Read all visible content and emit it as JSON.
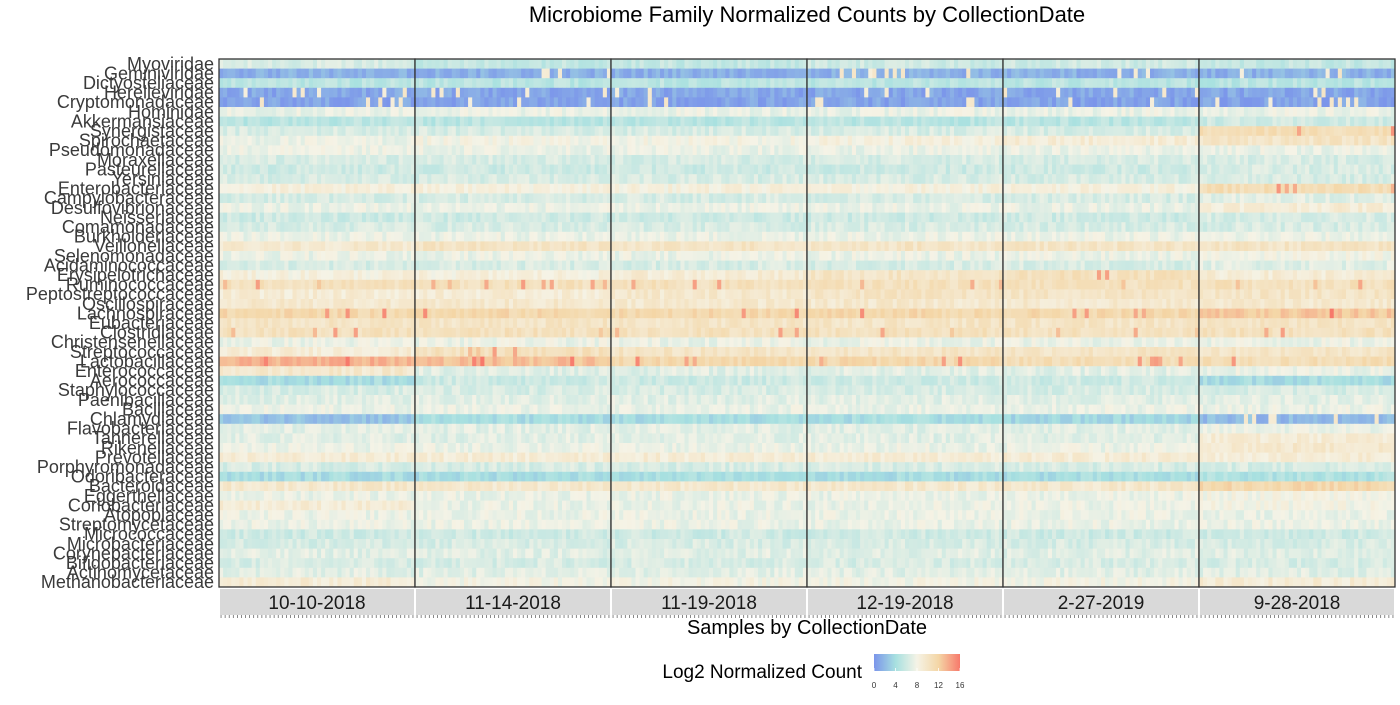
{
  "chart_data": {
    "type": "heatmap",
    "title": "Microbiome Family Normalized Counts by CollectionDate",
    "xlabel": "Samples by CollectionDate",
    "legend": {
      "title": "Log2 Normalized Count",
      "ticks": [
        0,
        4,
        8,
        12,
        16
      ],
      "range": [
        0,
        16
      ],
      "colors": [
        "#7b95ea",
        "#a7e0e0",
        "#f5f3e6",
        "#f4d6a6",
        "#f7796b"
      ],
      "placement": "bottom"
    },
    "panels": [
      {
        "label": "10-10-2018",
        "samples": 48
      },
      {
        "label": "11-14-2018",
        "samples": 48
      },
      {
        "label": "11-19-2018",
        "samples": 48
      },
      {
        "label": "12-19-2018",
        "samples": 48
      },
      {
        "label": "2-27-2019",
        "samples": 48
      },
      {
        "label": "9-28-2018",
        "samples": 48
      }
    ],
    "families": [
      {
        "name": "Myoviridae",
        "base": [
          6.5,
          5.5,
          5.5,
          6,
          6,
          5.5
        ]
      },
      {
        "name": "Geminiviridae",
        "base": [
          1.5,
          1.5,
          1.5,
          1.5,
          1.5,
          1.5
        ]
      },
      {
        "name": "Dictyosteliaceae",
        "base": [
          5,
          5,
          5,
          5,
          5,
          5
        ]
      },
      {
        "name": "Herelleviridae",
        "base": [
          1,
          1,
          1,
          1,
          1,
          1
        ]
      },
      {
        "name": "Cryptomonadaceae",
        "base": [
          0.8,
          0.8,
          0.8,
          0.8,
          0.8,
          0.8
        ]
      },
      {
        "name": "Hominidae",
        "base": [
          7.5,
          7.5,
          7.5,
          7.5,
          7.5,
          7.5
        ]
      },
      {
        "name": "Akkermansiaceae",
        "base": [
          5,
          5,
          5,
          5,
          5,
          6
        ]
      },
      {
        "name": "Synergistaceae",
        "base": [
          6.5,
          6.5,
          6.5,
          6.5,
          6.5,
          11
        ]
      },
      {
        "name": "Spirochaetaceae",
        "base": [
          7.5,
          8,
          8,
          8.5,
          9,
          10
        ]
      },
      {
        "name": "Pseudomonadaceae",
        "base": [
          7.5,
          7.5,
          7.5,
          7.5,
          7.5,
          7.5
        ]
      },
      {
        "name": "Moraxellaceae",
        "base": [
          6.5,
          6.5,
          6.5,
          6.5,
          6.5,
          6.5
        ]
      },
      {
        "name": "Pasteurellaceae",
        "base": [
          6,
          6,
          6,
          6,
          6,
          6.5
        ]
      },
      {
        "name": "Yersiniaceae",
        "base": [
          6.5,
          6.5,
          6.5,
          6.5,
          6.5,
          6.5
        ]
      },
      {
        "name": "Enterobacteriaceae",
        "base": [
          8.5,
          8.5,
          8.5,
          8.5,
          8.5,
          11
        ]
      },
      {
        "name": "Campylobacteraceae",
        "base": [
          6.5,
          6.5,
          6.5,
          6.5,
          6.5,
          7
        ]
      },
      {
        "name": "Desulfovibrionaceae",
        "base": [
          7.5,
          7.5,
          7.5,
          7.5,
          7.5,
          9
        ]
      },
      {
        "name": "Neisseriaceae",
        "base": [
          6,
          6,
          6,
          6,
          6,
          6.5
        ]
      },
      {
        "name": "Comamonadaceae",
        "base": [
          6.5,
          6.5,
          6.5,
          6.5,
          6.5,
          6.5
        ]
      },
      {
        "name": "Burkholderiaceae",
        "base": [
          7.5,
          7.5,
          7.5,
          7.5,
          7.5,
          7.5
        ]
      },
      {
        "name": "Veillonellaceae",
        "base": [
          9.5,
          10,
          10,
          10,
          10,
          10
        ]
      },
      {
        "name": "Selenomonadaceae",
        "base": [
          7.5,
          7.5,
          7.5,
          7.5,
          7.5,
          8
        ]
      },
      {
        "name": "Acidaminococcaceae",
        "base": [
          6.5,
          6.5,
          6.5,
          6.5,
          6.5,
          7
        ]
      },
      {
        "name": "Erysipelotrichaceae",
        "base": [
          8.5,
          8.5,
          9,
          10,
          10.5,
          9
        ]
      },
      {
        "name": "Ruminococcaceae",
        "base": [
          10.5,
          10.5,
          10.5,
          10.5,
          10.5,
          10.5
        ]
      },
      {
        "name": "Peptostreptococcaceae",
        "base": [
          9,
          9,
          9.5,
          10,
          10,
          10
        ]
      },
      {
        "name": "Oscillospiraceae",
        "base": [
          9.5,
          9.5,
          9.5,
          9.5,
          9.5,
          9.5
        ]
      },
      {
        "name": "Lachnospiraceae",
        "base": [
          11.5,
          11.5,
          11.5,
          11.5,
          11.5,
          12.5
        ]
      },
      {
        "name": "Eubacteriaceae",
        "base": [
          10,
          10,
          10,
          10,
          10,
          10
        ]
      },
      {
        "name": "Clostridiaceae",
        "base": [
          10.5,
          10.5,
          10.5,
          10.5,
          10.5,
          10.5
        ]
      },
      {
        "name": "Christensenellaceae",
        "base": [
          7.5,
          7.5,
          7.5,
          7.5,
          7.5,
          7.5
        ]
      },
      {
        "name": "Streptococcaceae",
        "base": [
          9,
          10.5,
          10,
          10,
          10,
          10
        ]
      },
      {
        "name": "Lactobacillaceae",
        "base": [
          13.5,
          13,
          11.5,
          11.5,
          11,
          11
        ]
      },
      {
        "name": "Enterococcaceae",
        "base": [
          9.5,
          7,
          7,
          7,
          7,
          7.5
        ]
      },
      {
        "name": "Aerococcaceae",
        "base": [
          4,
          6,
          6,
          6,
          6,
          4
        ]
      },
      {
        "name": "Staphylococcaceae",
        "base": [
          6.5,
          6.5,
          6.5,
          6.5,
          6.5,
          6.5
        ]
      },
      {
        "name": "Paenibacillaceae",
        "base": [
          7,
          7,
          7,
          7,
          7,
          7
        ]
      },
      {
        "name": "Bacillaceae",
        "base": [
          7.5,
          7.5,
          7.5,
          7.5,
          7.5,
          7.5
        ]
      },
      {
        "name": "Chlamydiaceae",
        "base": [
          2.5,
          4,
          4,
          4,
          3.5,
          2
        ]
      },
      {
        "name": "Flavobacteriaceae",
        "base": [
          7,
          7,
          7,
          7,
          7,
          7.5
        ]
      },
      {
        "name": "Tannerellaceae",
        "base": [
          7,
          7,
          7,
          7,
          7,
          9
        ]
      },
      {
        "name": "Rikenellaceae",
        "base": [
          7.5,
          7.5,
          7.5,
          7.5,
          7.5,
          9.5
        ]
      },
      {
        "name": "Prevotellaceae",
        "base": [
          9,
          9,
          9,
          9,
          9,
          9
        ]
      },
      {
        "name": "Porphyromonadaceae",
        "base": [
          6.5,
          6.5,
          6.5,
          6.5,
          6.5,
          6.5
        ]
      },
      {
        "name": "Odoribacteraceae",
        "base": [
          4,
          4,
          4,
          4,
          4,
          4.5
        ]
      },
      {
        "name": "Bacteroidaceae",
        "base": [
          9.5,
          9.5,
          9.5,
          9.5,
          9.5,
          11.5
        ]
      },
      {
        "name": "Eggerthellaceae",
        "base": [
          7.5,
          7.5,
          7.5,
          7.5,
          7.5,
          8
        ]
      },
      {
        "name": "Coriobacteriaceae",
        "base": [
          9,
          7.5,
          7.5,
          7.5,
          7.5,
          8
        ]
      },
      {
        "name": "Atopobiaceae",
        "base": [
          7.5,
          7.5,
          7.5,
          7.5,
          7.5,
          7.5
        ]
      },
      {
        "name": "Streptomycetaceae",
        "base": [
          7.5,
          7.5,
          7.5,
          7.5,
          7.5,
          7.5
        ]
      },
      {
        "name": "Micrococcaceae",
        "base": [
          6,
          6,
          6,
          6,
          6,
          6
        ]
      },
      {
        "name": "Microbacteriaceae",
        "base": [
          6.5,
          6.5,
          6.5,
          6.5,
          6.5,
          6.5
        ]
      },
      {
        "name": "Corynebacteriaceae",
        "base": [
          7,
          7,
          7,
          7,
          7,
          7
        ]
      },
      {
        "name": "Bifidobacteriaceae",
        "base": [
          6.5,
          6.5,
          6.5,
          6.5,
          6.5,
          6.5
        ]
      },
      {
        "name": "Actinomycetaceae",
        "base": [
          7,
          7,
          7,
          7,
          7,
          7
        ]
      },
      {
        "name": "Methanobacteriaceae",
        "base": [
          9,
          8,
          8,
          8,
          8,
          9
        ]
      }
    ]
  }
}
